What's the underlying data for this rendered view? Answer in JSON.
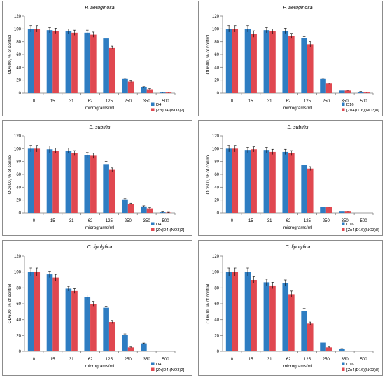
{
  "colors": {
    "series_1": "#2e7dc2",
    "series_2": "#e04850",
    "error_bar": "#000000",
    "axis": "#7f7f7f"
  },
  "chart_data": [
    {
      "type": "bar",
      "title": "P. aeruginosa",
      "categories": [
        "0",
        "15",
        "31",
        "62",
        "125",
        "250",
        "350",
        "500"
      ],
      "xlabel": "micrograms/ml",
      "ylabel": "OD600, % of control",
      "ylim": [
        0,
        120
      ],
      "yticks": [
        "0",
        "20",
        "40",
        "60",
        "80",
        "100",
        "120"
      ],
      "grid": false,
      "legend": "bottom-right",
      "series": [
        {
          "name": "D4",
          "values": [
            100,
            98,
            96,
            94,
            85,
            22,
            9,
            1
          ],
          "errors": [
            5,
            4,
            4,
            4,
            4,
            1,
            1,
            0.5
          ]
        },
        {
          "name": "[Zn(D4)(NO3)2]",
          "values": [
            100,
            97,
            94,
            91,
            71,
            18,
            6,
            1
          ],
          "errors": [
            5,
            4,
            4,
            4,
            2,
            1,
            1,
            0.5
          ]
        }
      ]
    },
    {
      "type": "bar",
      "title": "P. aeruginosa",
      "categories": [
        "0",
        "15",
        "31",
        "62",
        "125",
        "250",
        "350",
        "500"
      ],
      "xlabel": "micrograms/ml",
      "ylabel": "OD600, % of control",
      "ylim": [
        0,
        120
      ],
      "yticks": [
        "0",
        "20",
        "40",
        "60",
        "80",
        "100",
        "120"
      ],
      "grid": false,
      "legend": "bottom-right",
      "series": [
        {
          "name": "D16",
          "values": [
            100,
            100,
            98,
            97,
            86,
            22,
            4,
            2
          ],
          "errors": [
            5,
            5,
            4,
            4,
            2,
            1,
            1,
            0.5
          ]
        },
        {
          "name": "[Zn4(D16)(NO3)8]",
          "values": [
            100,
            92,
            96,
            89,
            76,
            15,
            4,
            1
          ],
          "errors": [
            5,
            5,
            4,
            4,
            4,
            1,
            0.5,
            0.5
          ]
        }
      ]
    },
    {
      "type": "bar",
      "title": "B. subtilis",
      "categories": [
        "0",
        "15",
        "31",
        "62",
        "125",
        "250",
        "350",
        "500"
      ],
      "xlabel": "micrograms/ml",
      "ylabel": "OD600, % of control",
      "ylim": [
        0,
        120
      ],
      "yticks": [
        "0",
        "20",
        "40",
        "60",
        "80",
        "100",
        "120"
      ],
      "grid": false,
      "legend": "bottom-right",
      "series": [
        {
          "name": "D4",
          "values": [
            100,
            99,
            97,
            90,
            76,
            21,
            10,
            1
          ],
          "errors": [
            5,
            5,
            4,
            4,
            4,
            1,
            1,
            0.5
          ]
        },
        {
          "name": "[Zn(D4)(NO3)2]",
          "values": [
            100,
            97,
            93,
            89,
            67,
            14,
            7,
            0.5
          ],
          "errors": [
            5,
            4,
            4,
            4,
            3,
            1,
            1,
            0.5
          ]
        }
      ]
    },
    {
      "type": "bar",
      "title": "B. subtilis",
      "categories": [
        "0",
        "15",
        "31",
        "62",
        "125",
        "250",
        "350",
        "500"
      ],
      "xlabel": "micrograms/ml",
      "ylabel": "OD600, % of control",
      "ylim": [
        0,
        120
      ],
      "yticks": [
        "0",
        "20",
        "40",
        "60",
        "80",
        "100",
        "120"
      ],
      "grid": false,
      "legend": "bottom-right",
      "series": [
        {
          "name": "D16",
          "values": [
            100,
            98,
            98,
            95,
            75,
            9,
            2,
            0
          ],
          "errors": [
            5,
            4,
            4,
            4,
            4,
            0.5,
            0.5,
            0
          ]
        },
        {
          "name": "[Zn4(D16)(NO3)8]",
          "values": [
            100,
            99,
            95,
            93,
            69,
            9,
            2,
            0
          ],
          "errors": [
            5,
            4,
            4,
            4,
            3,
            0.5,
            0.5,
            0
          ]
        }
      ]
    },
    {
      "type": "bar",
      "title": "C. lipolytica",
      "categories": [
        "0",
        "15",
        "31",
        "62",
        "125",
        "250",
        "350",
        "500"
      ],
      "xlabel": "micrograms/ml",
      "ylabel": "OD600, % of control",
      "ylim": [
        0,
        120
      ],
      "yticks": [
        "0",
        "20",
        "40",
        "60",
        "80",
        "100",
        "120"
      ],
      "grid": false,
      "legend": "bottom-right",
      "series": [
        {
          "name": "D4",
          "values": [
            100,
            97,
            79,
            68,
            55,
            21,
            10,
            0
          ],
          "errors": [
            5,
            4,
            3,
            3,
            2,
            1,
            0.5,
            0
          ]
        },
        {
          "name": "[Zn(D4)(NO3)2]",
          "values": [
            100,
            93,
            76,
            60,
            37,
            5,
            0,
            0
          ],
          "errors": [
            5,
            4,
            3,
            3,
            2,
            0.5,
            0,
            0
          ]
        }
      ]
    },
    {
      "type": "bar",
      "title": "C. lipolytica",
      "categories": [
        "0",
        "15",
        "31",
        "62",
        "125",
        "250",
        "350",
        "500"
      ],
      "xlabel": "micrograms/ml",
      "ylabel": "OD600, % of control",
      "ylim": [
        0,
        120
      ],
      "yticks": [
        "0",
        "20",
        "40",
        "60",
        "80",
        "100",
        "120"
      ],
      "grid": false,
      "legend": "bottom-right",
      "series": [
        {
          "name": "D16",
          "values": [
            100,
            100,
            87,
            86,
            51,
            11,
            3,
            0
          ],
          "errors": [
            5,
            5,
            4,
            4,
            3,
            1,
            0.5,
            0
          ]
        },
        {
          "name": "[Zn4(D16)(NO3)8]",
          "values": [
            100,
            90,
            83,
            72,
            35,
            5,
            0,
            0
          ],
          "errors": [
            5,
            4,
            4,
            4,
            2,
            0.5,
            0,
            0
          ]
        }
      ]
    }
  ]
}
